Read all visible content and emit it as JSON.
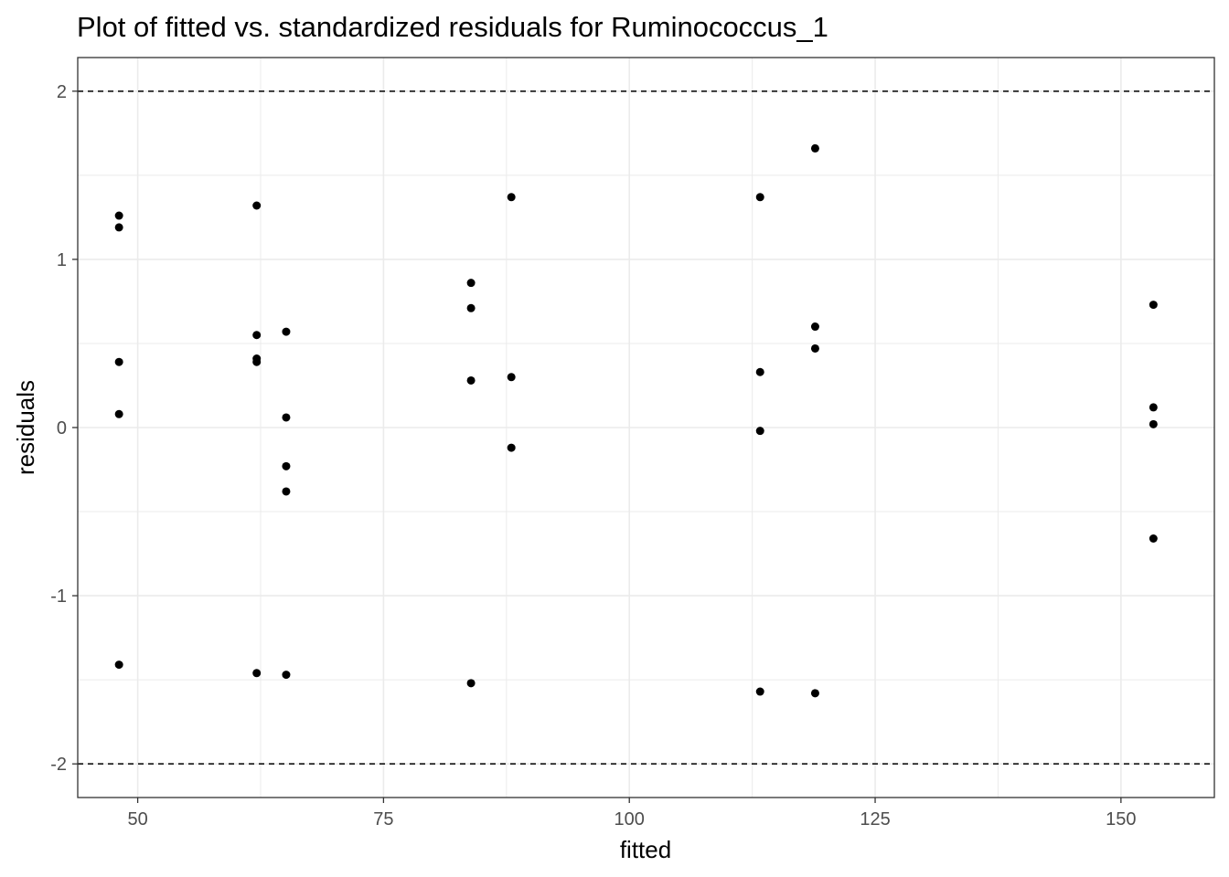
{
  "chart_data": {
    "type": "scatter",
    "title": "Plot of fitted vs. standardized residuals for Ruminococcus_1",
    "xlabel": "fitted",
    "ylabel": "residuals",
    "xlim": [
      43.9,
      159.5
    ],
    "ylim": [
      -2.2,
      2.2
    ],
    "x_ticks": [
      50,
      75,
      100,
      125,
      150
    ],
    "y_ticks": [
      -2,
      -1,
      0,
      1,
      2
    ],
    "x_tick_labels": [
      "50",
      "75",
      "100",
      "125",
      "150"
    ],
    "y_tick_labels": [
      "-2",
      "-1",
      "0",
      "1",
      "2"
    ],
    "x_minor_ticks": [
      62.5,
      87.5,
      112.5,
      137.5
    ],
    "y_minor_ticks": [
      -1.5,
      -0.5,
      0.5,
      1.5
    ],
    "reference_lines": [
      2,
      -2
    ],
    "grid": true,
    "colors": {
      "points": "#000000",
      "grid": "#ebebeb",
      "reference": "#000000",
      "panel_border": "#333333"
    },
    "points": [
      {
        "x": 48.1,
        "y": 1.26
      },
      {
        "x": 48.1,
        "y": 1.19
      },
      {
        "x": 48.1,
        "y": 0.39
      },
      {
        "x": 48.1,
        "y": 0.08
      },
      {
        "x": 48.1,
        "y": -1.41
      },
      {
        "x": 62.1,
        "y": 1.32
      },
      {
        "x": 62.1,
        "y": 0.55
      },
      {
        "x": 62.1,
        "y": 0.41
      },
      {
        "x": 62.1,
        "y": 0.39
      },
      {
        "x": 62.1,
        "y": -1.46
      },
      {
        "x": 65.1,
        "y": 0.57
      },
      {
        "x": 65.1,
        "y": 0.06
      },
      {
        "x": 65.1,
        "y": -0.23
      },
      {
        "x": 65.1,
        "y": -0.38
      },
      {
        "x": 65.1,
        "y": -1.47
      },
      {
        "x": 83.9,
        "y": 0.86
      },
      {
        "x": 83.9,
        "y": 0.71
      },
      {
        "x": 83.9,
        "y": 0.28
      },
      {
        "x": 83.9,
        "y": -1.52
      },
      {
        "x": 88.0,
        "y": 1.37
      },
      {
        "x": 88.0,
        "y": 0.3
      },
      {
        "x": 88.0,
        "y": -0.12
      },
      {
        "x": 113.3,
        "y": 1.37
      },
      {
        "x": 113.3,
        "y": 0.33
      },
      {
        "x": 113.3,
        "y": -0.02
      },
      {
        "x": 113.3,
        "y": -1.57
      },
      {
        "x": 118.9,
        "y": 1.66
      },
      {
        "x": 118.9,
        "y": 0.6
      },
      {
        "x": 118.9,
        "y": 0.47
      },
      {
        "x": 118.9,
        "y": -1.58
      },
      {
        "x": 153.3,
        "y": 0.73
      },
      {
        "x": 153.3,
        "y": 0.12
      },
      {
        "x": 153.3,
        "y": 0.02
      },
      {
        "x": 153.3,
        "y": -0.66
      }
    ]
  }
}
